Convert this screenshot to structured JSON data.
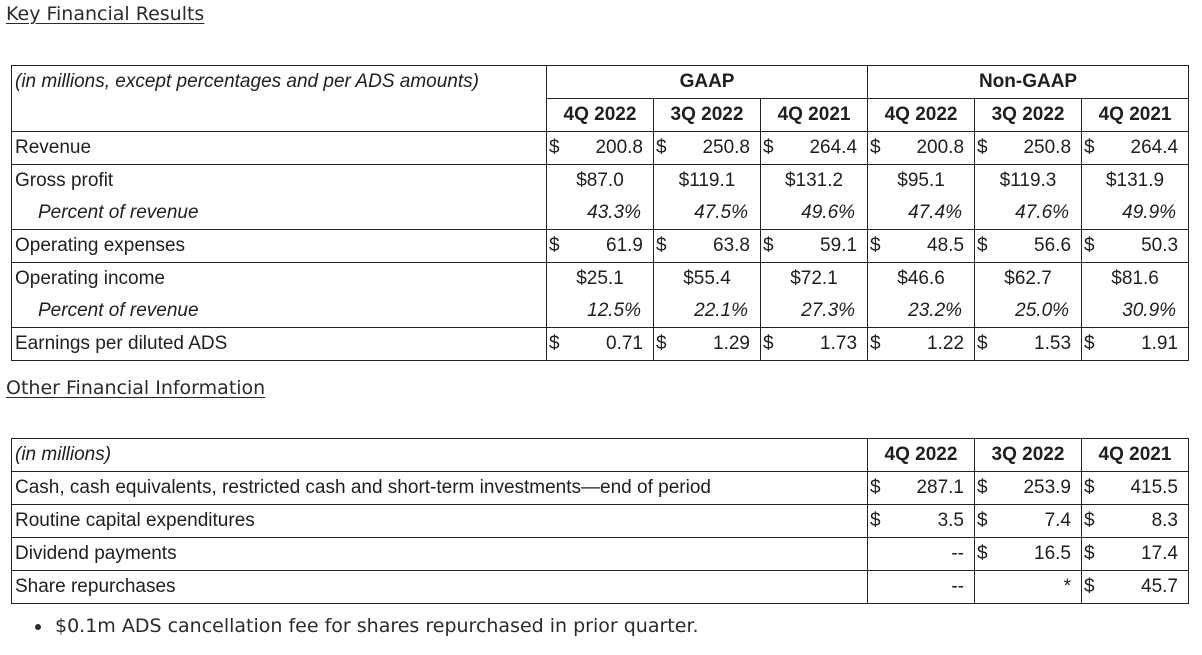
{
  "key_results": {
    "title": "Key Financial Results",
    "unit_note": "(in millions, except percentages and per ADS amounts)",
    "group_gaap": "GAAP",
    "group_nongaap": "Non-GAAP",
    "periods": [
      "4Q 2022",
      "3Q 2022",
      "4Q 2021",
      "4Q 2022",
      "3Q 2022",
      "4Q 2021"
    ],
    "rows": {
      "revenue": {
        "label": "Revenue",
        "values": [
          "200.8",
          "250.8",
          "264.4",
          "200.8",
          "250.8",
          "264.4"
        ],
        "dollar": "$"
      },
      "gross_profit": {
        "label": "Gross profit",
        "values": [
          "$87.0",
          "$119.1",
          "$131.2",
          "$95.1",
          "$119.3",
          "$131.9"
        ]
      },
      "gross_pct": {
        "label": "Percent of revenue",
        "values": [
          "43.3%",
          "47.5%",
          "49.6%",
          "47.4%",
          "47.6%",
          "49.9%"
        ]
      },
      "opex": {
        "label": "Operating expenses",
        "values": [
          "61.9",
          "63.8",
          "59.1",
          "48.5",
          "56.6",
          "50.3"
        ],
        "dollar": "$"
      },
      "op_income": {
        "label": "Operating income",
        "values": [
          "$25.1",
          "$55.4",
          "$72.1",
          "$46.6",
          "$62.7",
          "$81.6"
        ]
      },
      "op_pct": {
        "label": "Percent of revenue",
        "values": [
          "12.5%",
          "22.1%",
          "27.3%",
          "23.2%",
          "25.0%",
          "30.9%"
        ]
      },
      "eps": {
        "label": "Earnings per diluted ADS",
        "values": [
          "0.71",
          "1.29",
          "1.73",
          "1.22",
          "1.53",
          "1.91"
        ],
        "dollar": "$"
      }
    }
  },
  "other_info": {
    "title": "Other Financial Information",
    "unit_note": "(in millions)",
    "periods": [
      "4Q 2022",
      "3Q 2022",
      "4Q 2021"
    ],
    "rows": [
      {
        "label": "Cash, cash equivalents, restricted cash and short-term investments—end of period",
        "values": [
          "287.1",
          "253.9",
          "415.5"
        ],
        "dollar": [
          "$",
          "$",
          "$"
        ]
      },
      {
        "label": "Routine capital expenditures",
        "values": [
          "3.5",
          "7.4",
          "8.3"
        ],
        "dollar": [
          "$",
          "$",
          "$"
        ]
      },
      {
        "label": "Dividend payments",
        "values": [
          "--",
          "16.5",
          "17.4"
        ],
        "dollar": [
          "",
          "$",
          "$"
        ]
      },
      {
        "label": "Share repurchases",
        "values": [
          "--",
          "*",
          "45.7"
        ],
        "dollar": [
          "",
          "",
          "$"
        ]
      }
    ]
  },
  "footnote": "$0.1m ADS cancellation fee for shares repurchased in prior quarter."
}
